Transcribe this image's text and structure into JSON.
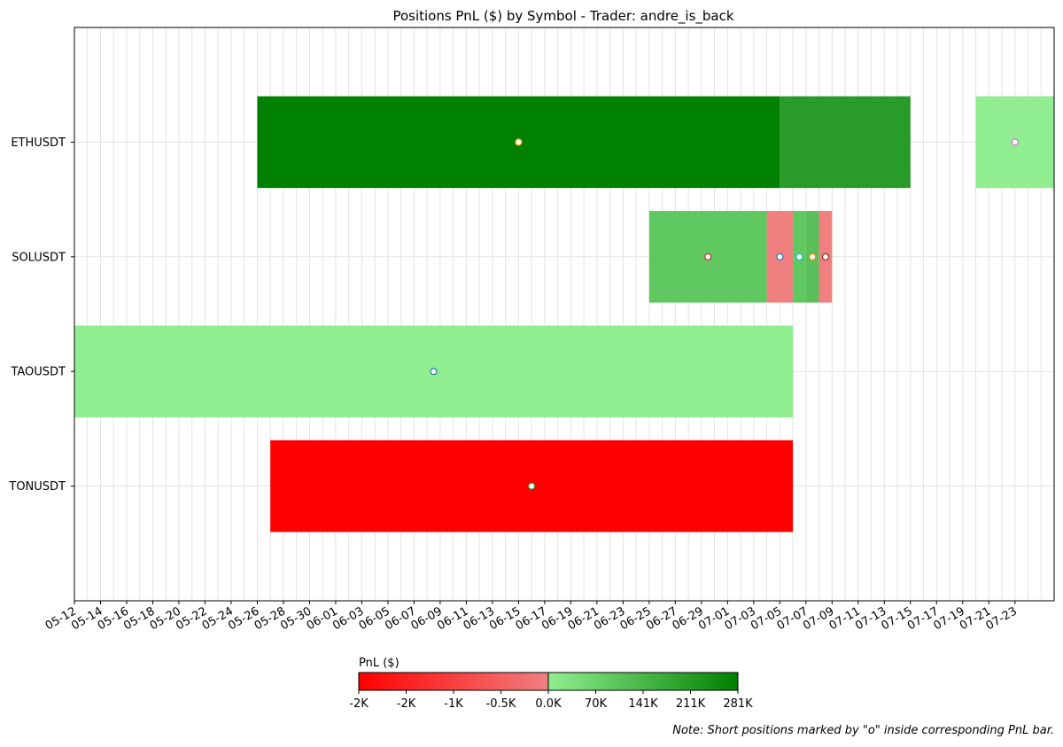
{
  "chart_data": {
    "type": "timeline",
    "title": "Positions PnL ($) by Symbol - Trader: andre_is_back",
    "xlabel": "",
    "ylabel": "",
    "xlim": [
      "2024-05-12",
      "2024-07-26"
    ],
    "x_ticks": [
      "05-12",
      "05-14",
      "05-16",
      "05-18",
      "05-20",
      "05-22",
      "05-24",
      "05-26",
      "05-28",
      "05-30",
      "06-01",
      "06-03",
      "06-05",
      "06-07",
      "06-09",
      "06-11",
      "06-13",
      "06-15",
      "06-17",
      "06-19",
      "06-21",
      "06-23",
      "06-25",
      "06-27",
      "06-29",
      "07-01",
      "07-03",
      "07-05",
      "07-07",
      "07-09",
      "07-11",
      "07-13",
      "07-15",
      "07-17",
      "07-19",
      "07-21",
      "07-23"
    ],
    "grid": true,
    "symbols": [
      "ETHUSDT",
      "SOLUSDT",
      "TAOUSDT",
      "TONUSDT"
    ],
    "positions": [
      {
        "symbol": "ETHUSDT",
        "start": "2024-05-26",
        "end": "2024-07-05",
        "pnl": 281000,
        "color": "#008000",
        "short": true,
        "marker_color": "#ffa500"
      },
      {
        "symbol": "ETHUSDT",
        "start": "2024-07-05",
        "end": "2024-07-15",
        "pnl": 240000,
        "color": "#289b28",
        "short": false
      },
      {
        "symbol": "ETHUSDT",
        "start": "2024-07-20",
        "end": "2024-07-26",
        "pnl": 5000,
        "color": "#90ee90",
        "short": true,
        "marker_color": "#da70d6"
      },
      {
        "symbol": "SOLUSDT",
        "start": "2024-06-25",
        "end": "2024-07-04",
        "pnl": 90000,
        "color": "#60c860",
        "short": true,
        "marker_color": "#d62728"
      },
      {
        "symbol": "SOLUSDT",
        "start": "2024-07-04",
        "end": "2024-07-06",
        "pnl": -100,
        "color": "#f08080",
        "short": true,
        "marker_color": "#1f77b4"
      },
      {
        "symbol": "SOLUSDT",
        "start": "2024-07-06",
        "end": "2024-07-07",
        "pnl": 90000,
        "color": "#60c860",
        "short": true,
        "marker_color": "#17becf"
      },
      {
        "symbol": "SOLUSDT",
        "start": "2024-07-07",
        "end": "2024-07-08",
        "pnl": 60000,
        "color": "#5abe5a",
        "short": true,
        "marker_color": "#ff7f0e"
      },
      {
        "symbol": "SOLUSDT",
        "start": "2024-07-08",
        "end": "2024-07-09",
        "pnl": -100,
        "color": "#f08080",
        "short": true,
        "marker_color": "#8c2d19"
      },
      {
        "symbol": "TAOUSDT",
        "start": "2024-05-12",
        "end": "2024-07-06",
        "pnl": 10000,
        "color": "#90ee90",
        "short": true,
        "marker_color": "#1f77b4"
      },
      {
        "symbol": "TONUSDT",
        "start": "2024-05-27",
        "end": "2024-07-06",
        "pnl": -2100,
        "color": "#ff0000",
        "short": true,
        "marker_color": "#2ca02c"
      }
    ],
    "colorbar": {
      "label": "PnL ($)",
      "negative_ticks": [
        "-2K",
        "-2K",
        "-1K",
        "-0.5K"
      ],
      "center_tick": "0.0K",
      "positive_ticks": [
        "70K",
        "141K",
        "211K",
        "281K"
      ],
      "colors": {
        "neg_low": "#ff0000",
        "neg_high": "#f08080",
        "pos_low": "#90ee90",
        "pos_high": "#008000"
      }
    },
    "note": "Note: Short positions marked by \"o\" inside corresponding PnL bar."
  }
}
